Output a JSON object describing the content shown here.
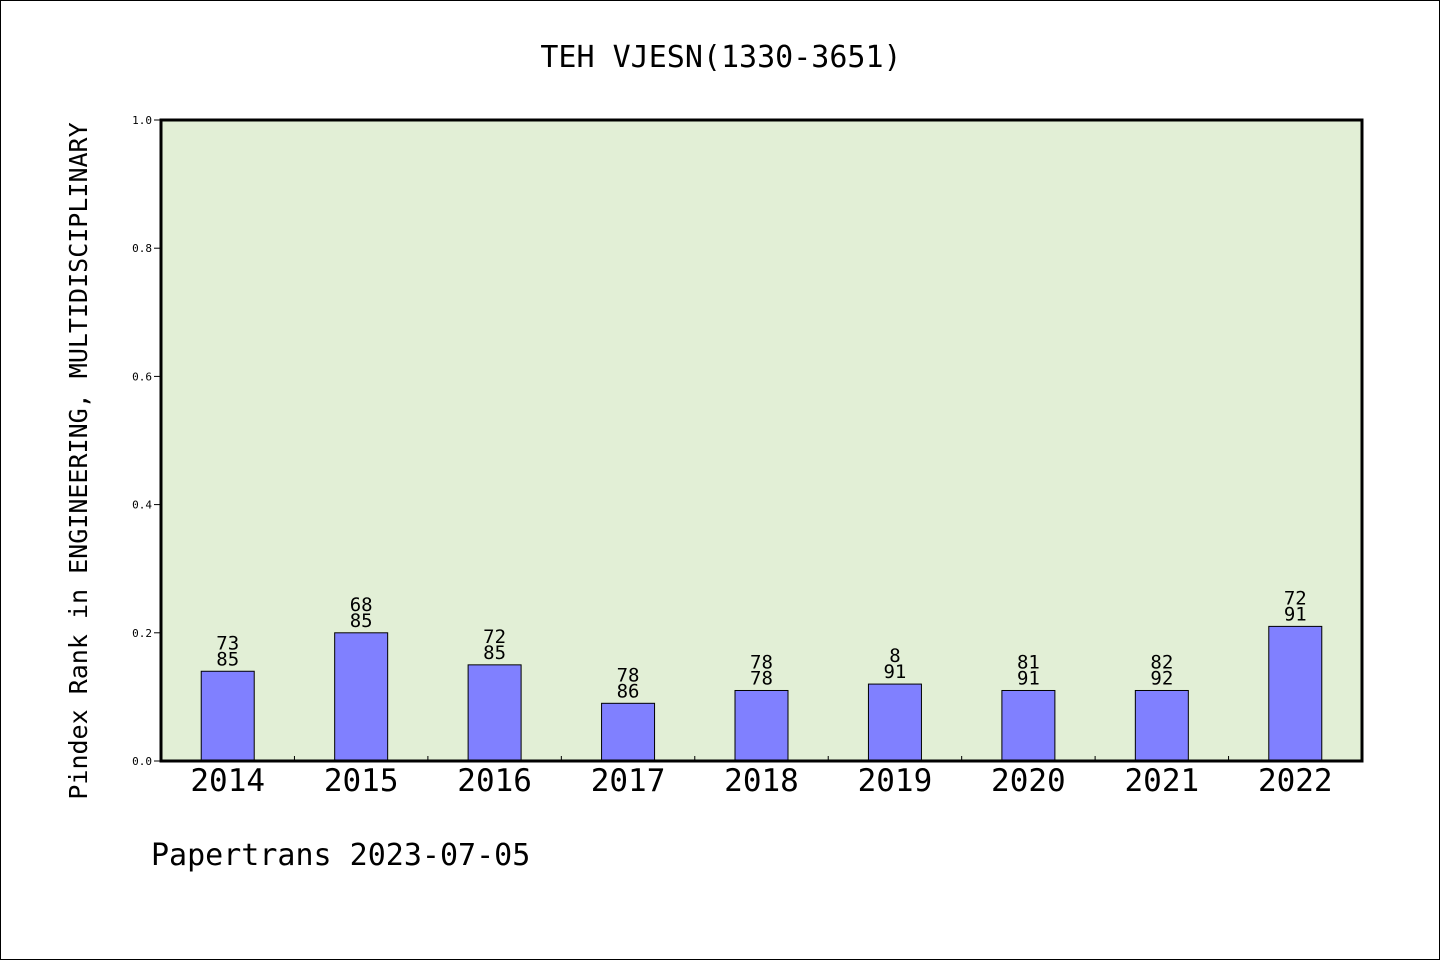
{
  "chart_data": {
    "type": "bar",
    "title": "TEH VJESN(1330-3651)",
    "ylabel": "Pindex Rank in ENGINEERING, MULTIDISCIPLINARY",
    "xlabel": "",
    "footer": "Papertrans 2023-07-05",
    "categories": [
      "2014",
      "2015",
      "2016",
      "2017",
      "2018",
      "2019",
      "2020",
      "2021",
      "2022"
    ],
    "values": [
      0.14,
      0.2,
      0.15,
      0.09,
      0.11,
      0.12,
      0.11,
      0.11,
      0.21
    ],
    "label_top": [
      "73",
      "68",
      "72",
      "78",
      "78",
      "8",
      "81",
      "82",
      "72"
    ],
    "label_bottom": [
      "85",
      "85",
      "85",
      "86",
      "78",
      "91",
      "91",
      "92",
      "91"
    ],
    "ylim": [
      0,
      1.0
    ],
    "yticks": [
      "0.0",
      "0.2",
      "0.4",
      "0.6",
      "0.8",
      "1.0"
    ],
    "ytick_values": [
      0,
      0.2,
      0.4,
      0.6,
      0.8,
      1.0
    ],
    "grid": false,
    "colors": {
      "bar": "#8080ff",
      "plot_background": "#e2efd6",
      "axis": "#000000"
    }
  }
}
